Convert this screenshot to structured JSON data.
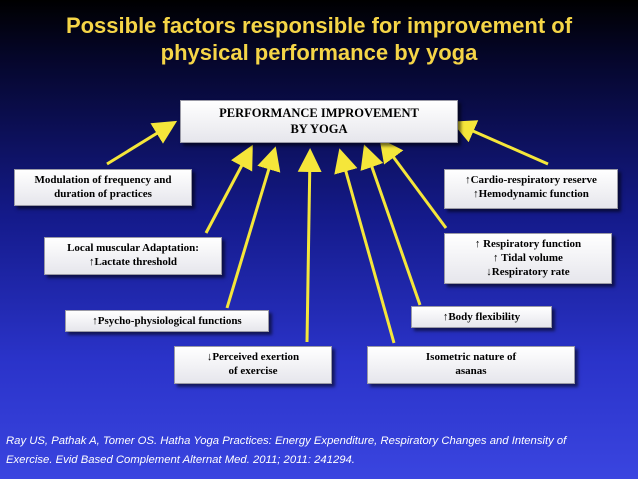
{
  "title": {
    "line1": "Possible factors responsible for improvement of",
    "line2": "physical performance by yoga"
  },
  "main": {
    "line1": "PERFORMANCE IMPROVEMENT",
    "line2": "BY YOGA"
  },
  "factors": {
    "modulation": {
      "line1": "Modulation of frequency and",
      "line2": "duration of practices"
    },
    "local_muscular": {
      "line1": "Local muscular Adaptation:",
      "line2": "↑Lactate threshold"
    },
    "psycho": {
      "line1": "↑Psycho-physiological functions"
    },
    "perceived": {
      "line1": "↓Perceived exertion",
      "line2": "of exercise"
    },
    "isometric": {
      "line1": "Isometric nature of",
      "line2": "asanas"
    },
    "body_flex": {
      "line1": "↑Body flexibility"
    },
    "respiratory": {
      "line1": "↑ Respiratory function",
      "line2": "↑ Tidal volume",
      "line3": "↓Respiratory rate"
    },
    "cardio": {
      "line1": "↑Cardio-respiratory reserve",
      "line2": "↑Hemodynamic function"
    }
  },
  "citation": {
    "line1": "Ray US, Pathak A, Tomer OS. Hatha Yoga Practices: Energy Expenditure, Respiratory Changes and Intensity of",
    "line2": "Exercise.  Evid Based Complement Alternat Med. 2011; 2011: 241294."
  },
  "colors": {
    "title": "#f5d547",
    "arrow": "#f5e63a"
  }
}
